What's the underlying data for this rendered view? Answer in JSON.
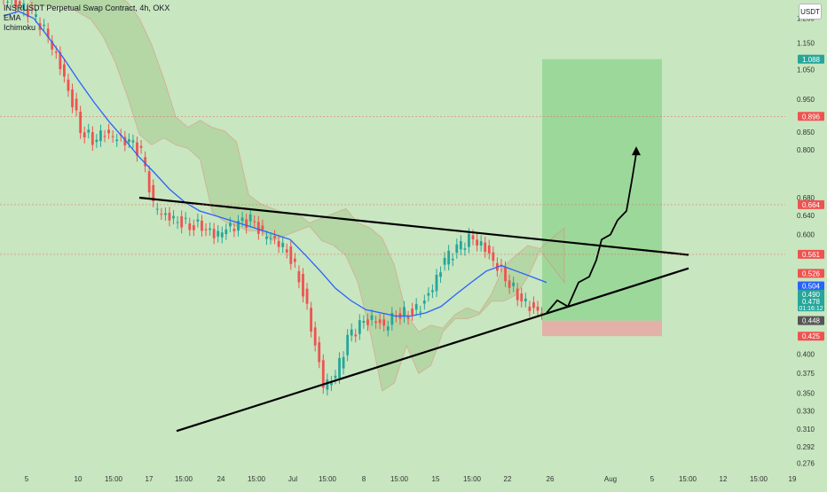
{
  "header": {
    "title": "INSRUSDT Perpetual Swap Contract, 4h, OKX",
    "indicators": [
      "EMA",
      "Ichimoku"
    ],
    "currency_button": "USDT"
  },
  "colors": {
    "background": "#c8e6c0",
    "candle_up": "#26a69a",
    "candle_down": "#ef5350",
    "ema": "#2962ff",
    "cloud": "#a5cc8f",
    "trendline": "#000000",
    "target_zone": "#8fd38f",
    "stop_zone": "#e8a7a2"
  },
  "chart_data": {
    "type": "candlestick",
    "title": "INSRUSDT Perpetual Swap Contract, 4h, OKX",
    "ylim": [
      0.27,
      1.33
    ],
    "y_scale": "log",
    "y_ticks": [
      "1.250",
      "1.150",
      "1.050",
      "0.950",
      "0.850",
      "0.800",
      "0.680",
      "0.640",
      "0.600",
      "0.526",
      "0.504",
      "0.490",
      "0.478",
      "0.448",
      "0.425",
      "0.400",
      "0.375",
      "0.350",
      "0.330",
      "0.310",
      "0.292",
      "0.276"
    ],
    "x_ticks": [
      "5",
      "10",
      "15:00",
      "17",
      "15:00",
      "24",
      "15:00",
      "Jul",
      "15:00",
      "8",
      "15:00",
      "15",
      "15:00",
      "22",
      "26",
      "Aug",
      "5",
      "15:00",
      "12",
      "15:00",
      "19"
    ],
    "series": [
      {
        "name": "Close",
        "values": [
          1.33,
          1.3,
          1.27,
          1.2,
          1.1,
          0.98,
          0.86,
          0.83,
          0.85,
          0.83,
          0.82,
          0.79,
          0.66,
          0.64,
          0.63,
          0.62,
          0.62,
          0.6,
          0.61,
          0.62,
          0.63,
          0.6,
          0.59,
          0.57,
          0.52,
          0.44,
          0.36,
          0.37,
          0.42,
          0.44,
          0.45,
          0.44,
          0.46,
          0.46,
          0.47,
          0.5,
          0.55,
          0.57,
          0.59,
          0.58,
          0.55,
          0.52,
          0.49,
          0.47,
          0.46
        ]
      },
      {
        "name": "EMA",
        "values": [
          1.26,
          1.28,
          1.25,
          1.17,
          1.09,
          1.01,
          0.94,
          0.88,
          0.83,
          0.78,
          0.74,
          0.7,
          0.67,
          0.65,
          0.64,
          0.63,
          0.62,
          0.61,
          0.6,
          0.59,
          0.56,
          0.53,
          0.5,
          0.48,
          0.465,
          0.46,
          0.455,
          0.455,
          0.46,
          0.47,
          0.49,
          0.51,
          0.53,
          0.54,
          0.53,
          0.52,
          0.51
        ]
      }
    ],
    "price_labels": [
      {
        "label": "1.088",
        "value": 1.088,
        "color": "#26a69a"
      },
      {
        "label": "0.896",
        "value": 0.896,
        "color": "#ef5350"
      },
      {
        "label": "0.664",
        "value": 0.664,
        "color": "#ef5350"
      },
      {
        "label": "0.561",
        "value": 0.561,
        "color": "#ef5350"
      },
      {
        "label": "0.526",
        "value": 0.526,
        "color": "#ef5350"
      },
      {
        "label": "0.504",
        "value": 0.504,
        "color": "#2962ff"
      },
      {
        "label": "0.490",
        "value": 0.49,
        "color": "#26a69a"
      },
      {
        "label": "0.478",
        "value": 0.478,
        "color": "#26a69a",
        "countdown": "01:16:12"
      },
      {
        "label": "0.448",
        "value": 0.448,
        "color": "#555555"
      },
      {
        "label": "0.425",
        "value": 0.425,
        "color": "#ef5350"
      }
    ],
    "trade": {
      "target": 1.088,
      "entry": 0.448,
      "stop": 0.425
    },
    "grid": false
  }
}
